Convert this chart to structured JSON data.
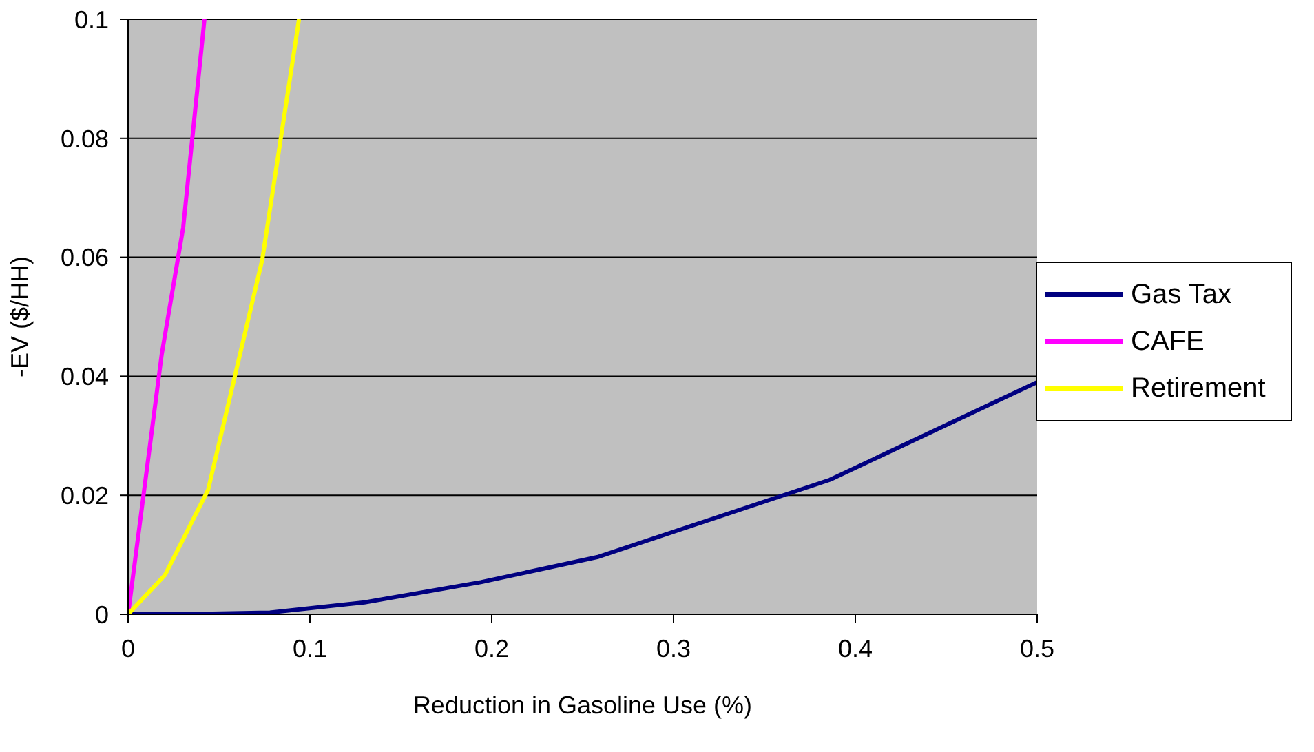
{
  "chart_data": {
    "type": "line",
    "xlabel": "Reduction in Gasoline Use (%)",
    "ylabel": "-EV ($/HH)",
    "series": [
      {
        "name": "Gas Tax",
        "color": "#000080",
        "x": [
          0,
          0.024,
          0.078,
          0.13,
          0.194,
          0.258,
          0.386,
          0.5
        ],
        "values": [
          0,
          0,
          0.0003,
          0.002,
          0.0054,
          0.0096,
          0.0226,
          0.039
        ]
      },
      {
        "name": "CAFE",
        "color": "#ff00ff",
        "x": [
          0,
          0.0185,
          0.0303,
          0.042
        ],
        "values": [
          0,
          0.0437,
          0.065,
          0.1
        ]
      },
      {
        "name": "Retirement",
        "color": "#ffff00",
        "x": [
          0,
          0.0203,
          0.044,
          0.0738,
          0.094
        ],
        "values": [
          0,
          0.0066,
          0.0209,
          0.0596,
          0.1
        ]
      }
    ],
    "xlim": [
      0,
      0.5
    ],
    "xticks": [
      0,
      0.1,
      0.2,
      0.3,
      0.4,
      0.5
    ],
    "ylim": [
      0,
      0.1
    ],
    "yticks": [
      0,
      0.02,
      0.04,
      0.06,
      0.08,
      0.1
    ],
    "grid": "y",
    "legend": "right",
    "marker": "none",
    "line_style": "solid"
  }
}
